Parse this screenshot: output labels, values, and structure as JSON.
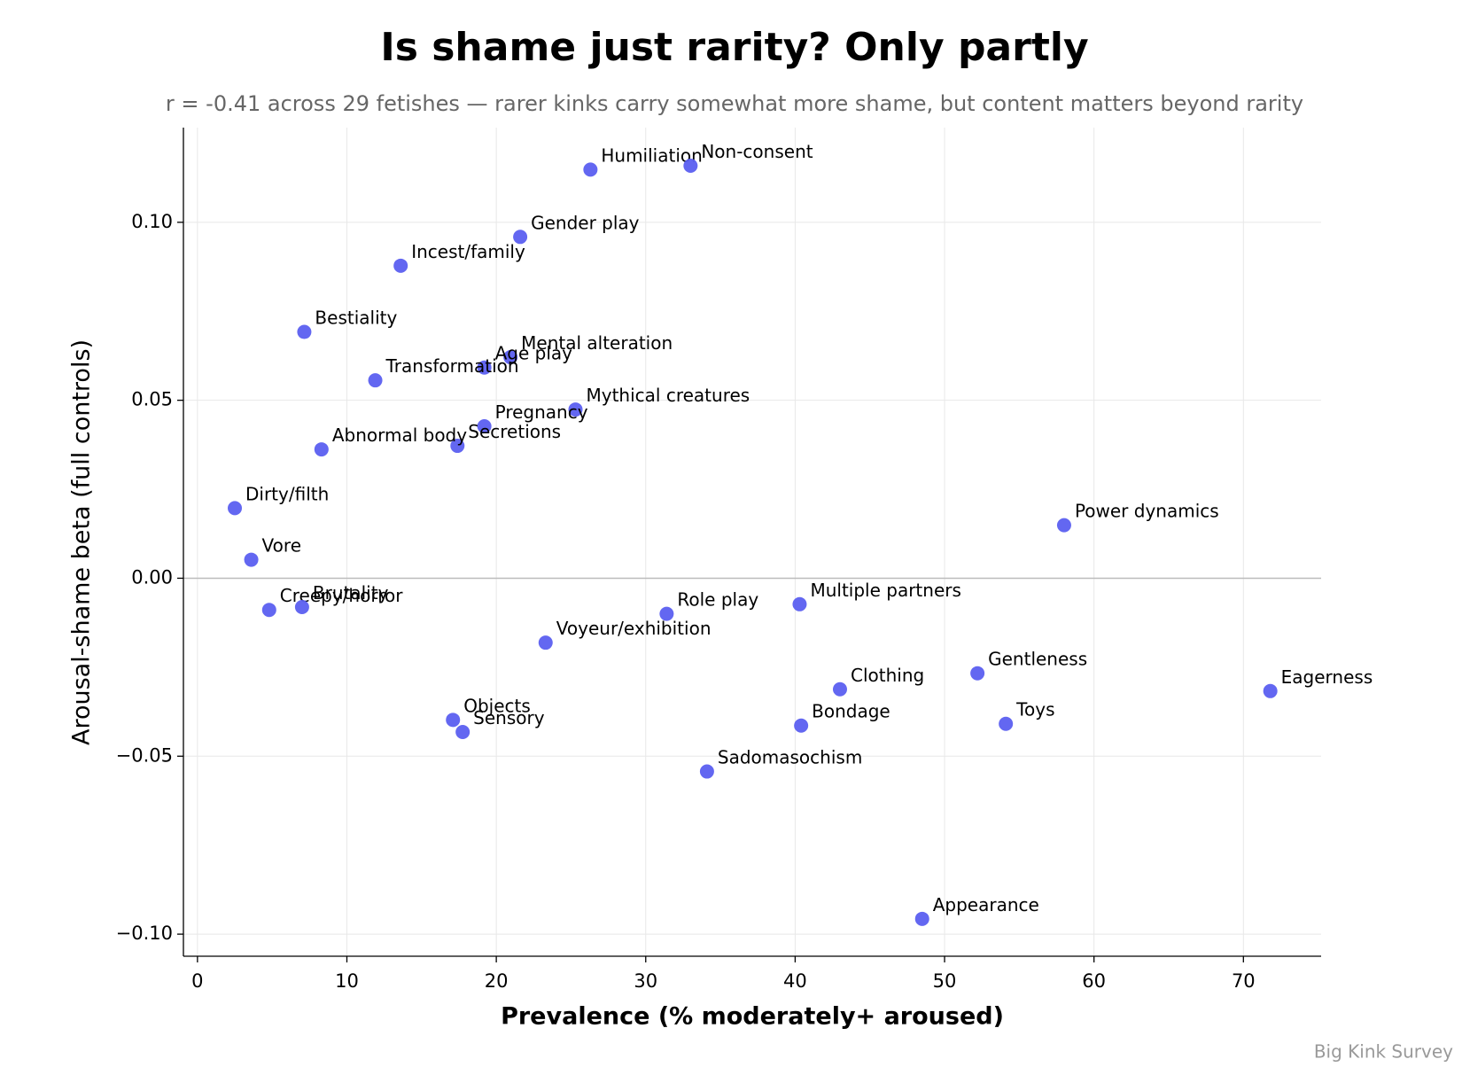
{
  "chart_data": {
    "type": "scatter",
    "title": "Is shame just rarity? Only partly",
    "subtitle": "r = -0.41 across 29 fetishes — rarer kinks carry somewhat more shame, but content matters beyond rarity",
    "x_label": "Prevalence (% moderately+ aroused)",
    "y_label": "Arousal-shame beta (full controls)",
    "source": "Big Kink Survey",
    "xlim": [
      -0.94,
      75.2
    ],
    "ylim": [
      -0.1062,
      0.1266
    ],
    "xticks": [
      0,
      10,
      20,
      30,
      40,
      50,
      60,
      70
    ],
    "yticks": [
      {
        "value": -0.1,
        "label": "−0.10"
      },
      {
        "value": -0.05,
        "label": "−0.05"
      },
      {
        "value": 0,
        "label": "0.00"
      },
      {
        "value": 0.05,
        "label": "0.05"
      },
      {
        "value": 0.1,
        "label": "0.10"
      }
    ],
    "grid": true,
    "axhline": 0,
    "series": [
      {
        "color": "#5b5ff0",
        "labels": [
          "Humiliation",
          "Non-consent",
          "Gender play",
          "Incest/family",
          "Bestiality",
          "Mental alteration",
          "Age play",
          "Transformation",
          "Mythical creatures",
          "Pregnancy",
          "Secretions",
          "Abnormal body",
          "Dirty/filth",
          "Power dynamics",
          "Vore",
          "Creepy/horror",
          "Brutality",
          "Multiple partners",
          "Role play",
          "Voyeur/exhibition",
          "Gentleness",
          "Eagerness",
          "Clothing",
          "Objects",
          "Sensory",
          "Bondage",
          "Toys",
          "Sadomasochism",
          "Appearance"
        ],
        "x": [
          26.3,
          33.0,
          21.6,
          13.6,
          7.15,
          20.95,
          19.2,
          11.9,
          25.3,
          19.2,
          17.4,
          8.3,
          2.5,
          58.0,
          3.6,
          4.8,
          7.0,
          40.3,
          31.4,
          23.3,
          52.2,
          71.8,
          43.0,
          17.1,
          17.75,
          40.4,
          54.1,
          34.1,
          48.5
        ],
        "values": [
          0.1148,
          0.1159,
          0.0959,
          0.0878,
          0.0692,
          0.0621,
          0.0592,
          0.0556,
          0.0474,
          0.0427,
          0.0372,
          0.0362,
          0.0197,
          0.0149,
          0.0052,
          -0.0089,
          -0.0081,
          -0.0073,
          -0.01,
          -0.0181,
          -0.0267,
          -0.0317,
          -0.0312,
          -0.0398,
          -0.0432,
          -0.0414,
          -0.0409,
          -0.0543,
          -0.0957
        ]
      }
    ]
  }
}
